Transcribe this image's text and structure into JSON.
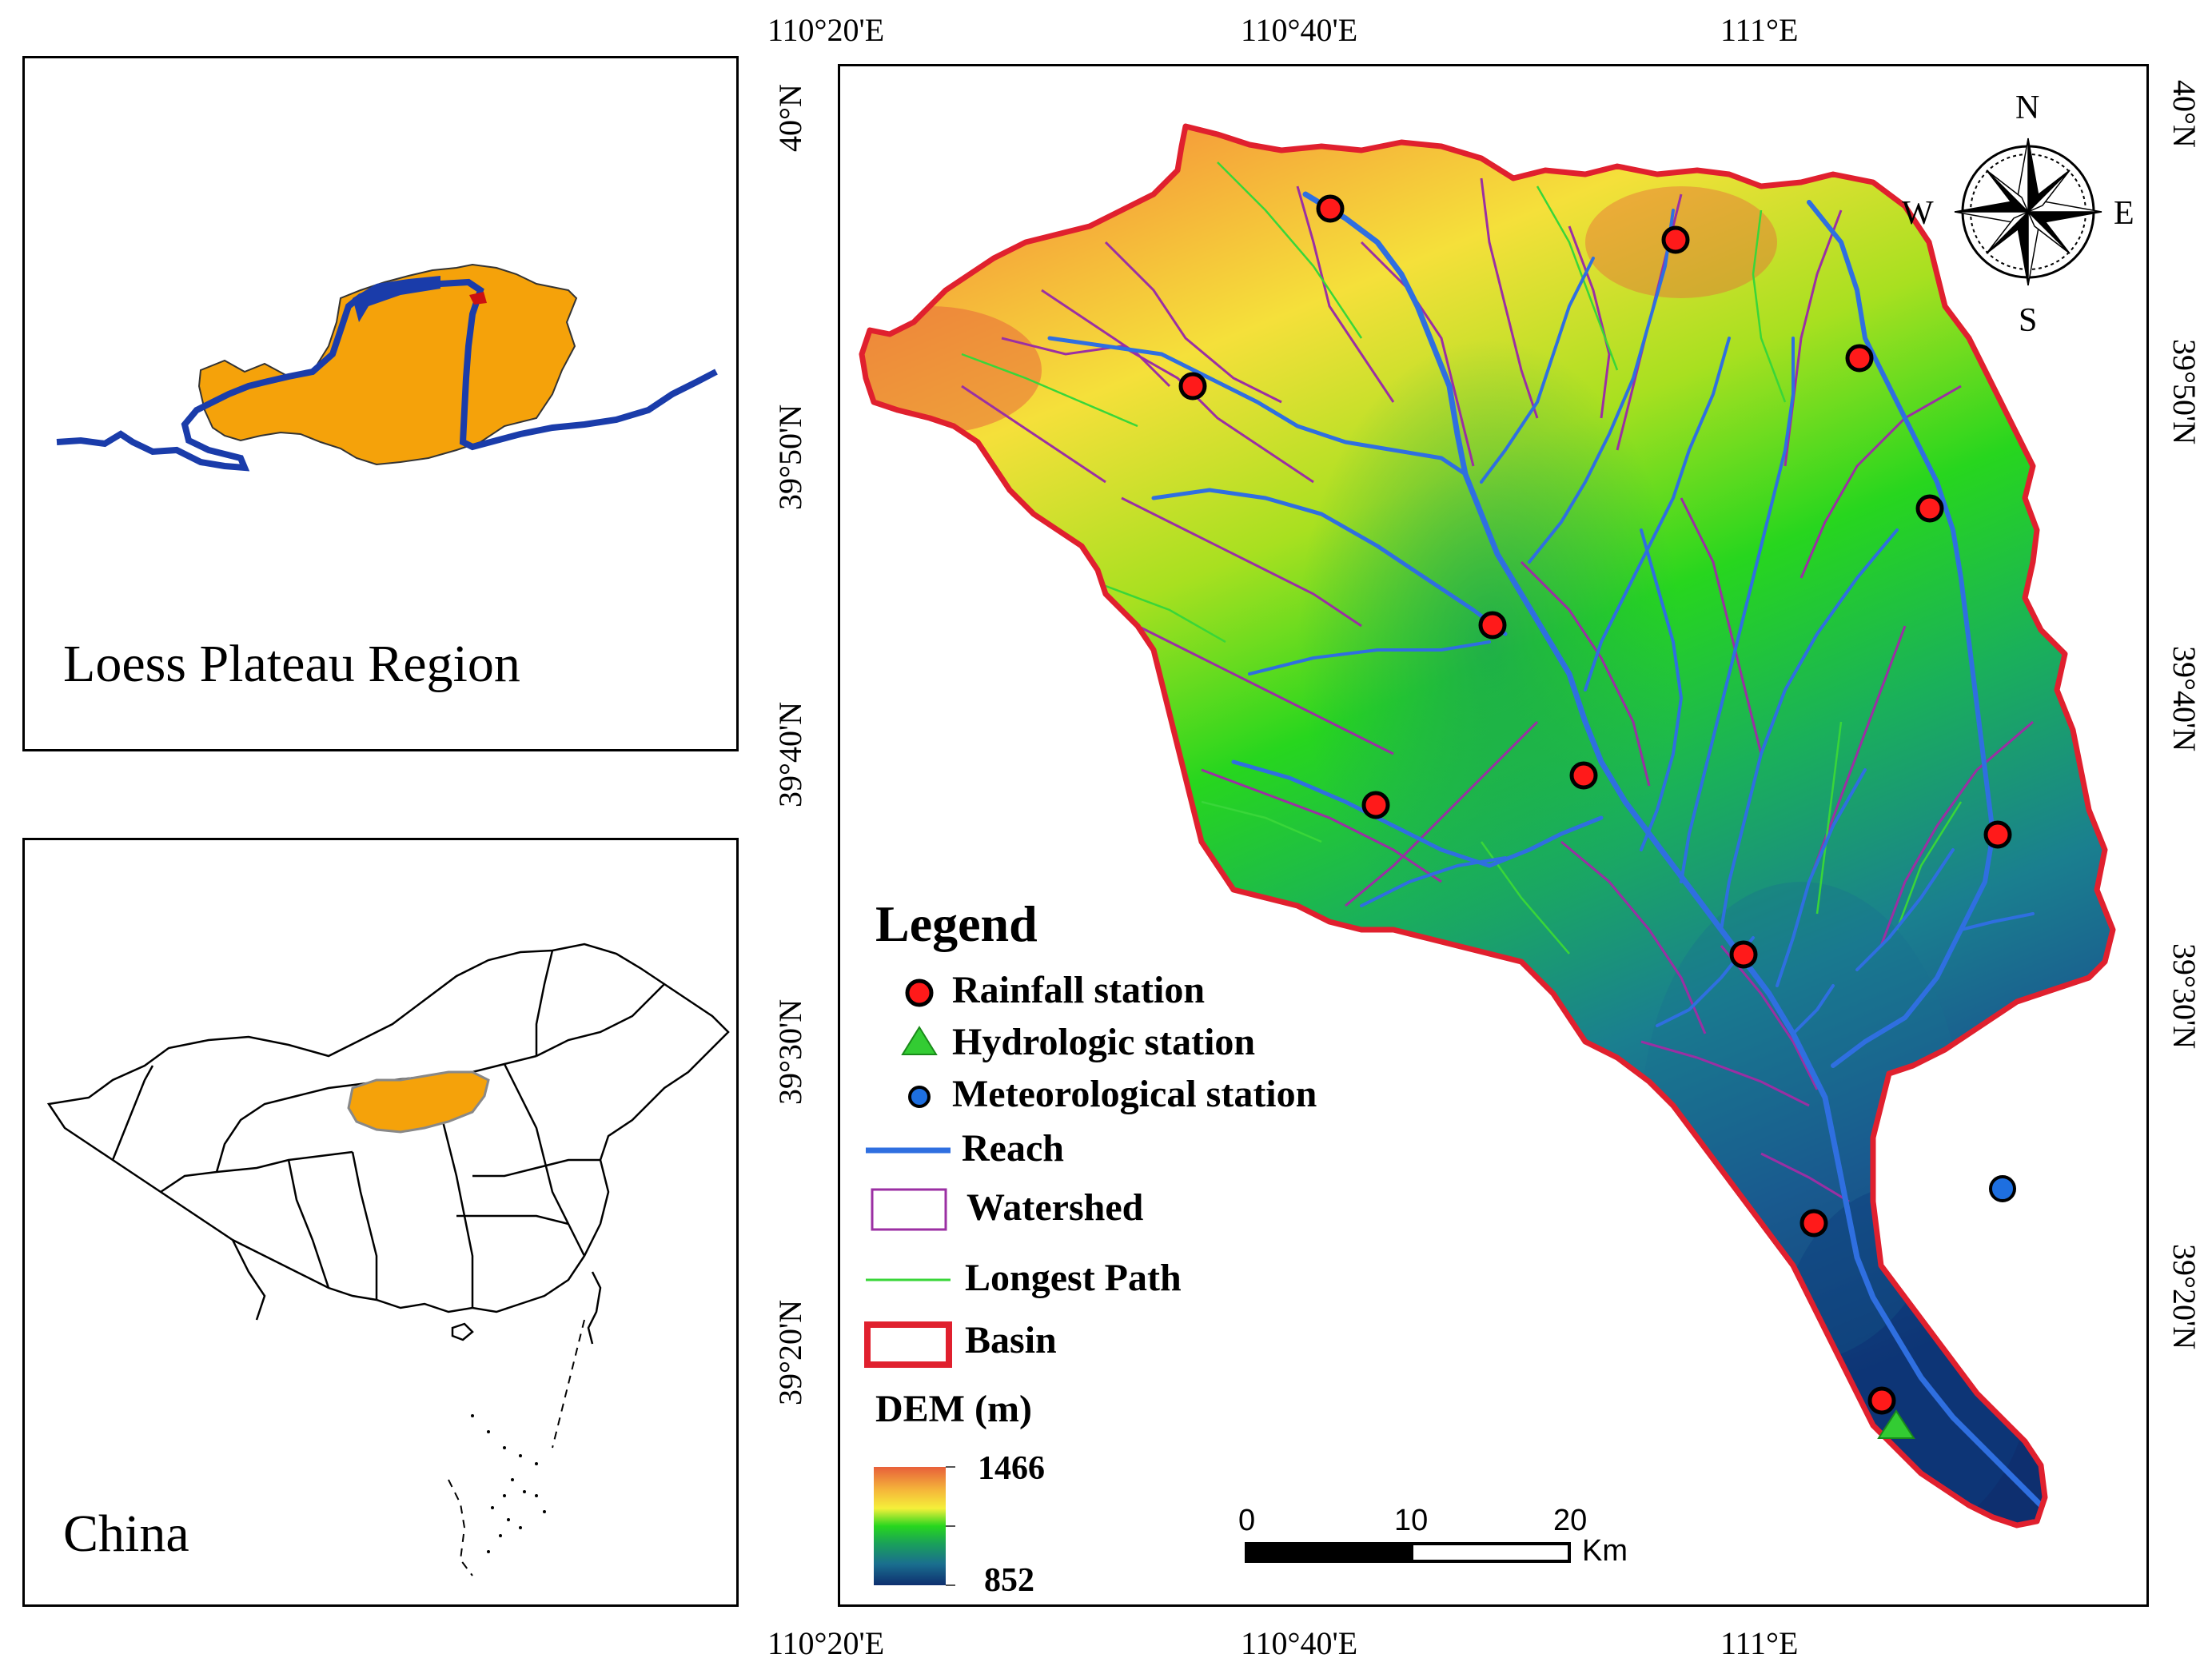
{
  "insets": {
    "loess": {
      "label": "Loess Plateau Region"
    },
    "china": {
      "label": "China"
    }
  },
  "map": {
    "lon_labels": [
      "110°20'E",
      "110°40'E",
      "111°E"
    ],
    "lat_labels": [
      "40°N",
      "39°50'N",
      "39°40'N",
      "39°30'N",
      "39°20'N"
    ],
    "compass": {
      "n": "N",
      "s": "S",
      "e": "E",
      "w": "W"
    },
    "scale": {
      "ticks": [
        "0",
        "10",
        "20"
      ],
      "unit": "Km"
    }
  },
  "legend": {
    "title": "Legend",
    "items": [
      {
        "label": "Rainfall station",
        "symbol": "red-circle",
        "color": "#ff1a1a"
      },
      {
        "label": "Hydrologic station",
        "symbol": "green-triangle",
        "color": "#33cc33"
      },
      {
        "label": "Meteorological station",
        "symbol": "blue-circle",
        "color": "#1e6fe0"
      },
      {
        "label": "Reach",
        "symbol": "blue-line",
        "color": "#2f6fe0"
      },
      {
        "label": "Watershed",
        "symbol": "purple-box",
        "color": "#9b2fa3"
      },
      {
        "label": "Longest Path",
        "symbol": "green-line",
        "color": "#39d639"
      },
      {
        "label": "Basin",
        "symbol": "red-box",
        "color": "#e0202e"
      }
    ],
    "dem": {
      "title": "DEM (m)",
      "max": "1466",
      "min": "852",
      "colors": [
        "#e8603a",
        "#f5b83a",
        "#f5f03a",
        "#27d61e",
        "#1aa05a",
        "#1a6f8f",
        "#0e2f6f"
      ]
    }
  }
}
